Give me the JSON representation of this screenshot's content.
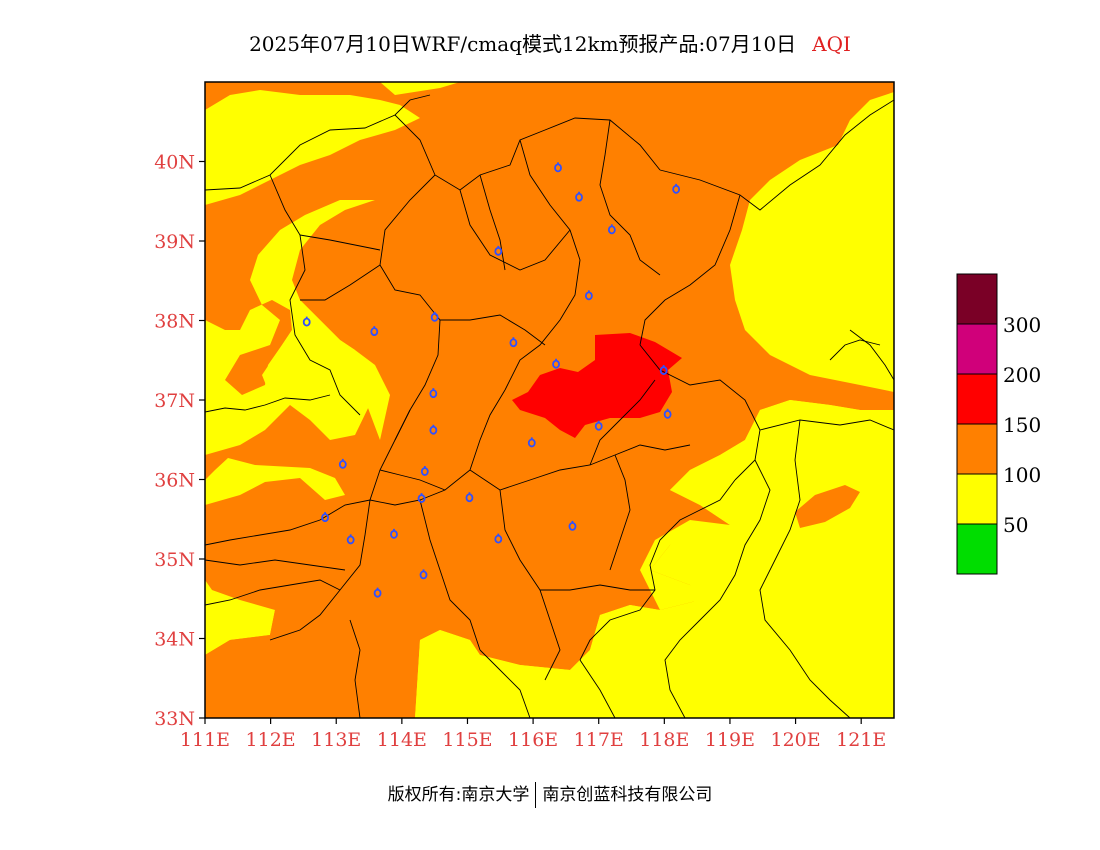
{
  "title": {
    "main": "2025年07月10日WRF/cmaq模式12km预报产品:07月10日",
    "variable": "AQI"
  },
  "map": {
    "lon_range": [
      111,
      121.5
    ],
    "lat_range": [
      33,
      41
    ],
    "lat_ticks": [
      "33N",
      "34N",
      "35N",
      "36N",
      "37N",
      "38N",
      "39N",
      "40N"
    ],
    "lon_ticks": [
      "111E",
      "112E",
      "113E",
      "114E",
      "115E",
      "116E",
      "117E",
      "118E",
      "119E",
      "120E",
      "121E"
    ],
    "tick_color": "#e04040",
    "background_level_color": "#ffff00",
    "regions": [
      {
        "level": "101-150",
        "color": "#ff8000",
        "area": "central band from Shanxi through Hebei, Henan and western Shandong"
      },
      {
        "level": "151-200",
        "color": "#ff0000",
        "area": "southern Hebei / western Shandong border"
      }
    ],
    "station_marker_color": "#3050ff"
  },
  "legend": {
    "labels": [
      "300",
      "200",
      "150",
      "100",
      "50"
    ],
    "colors": [
      "#7a0026",
      "#d0007a",
      "#ff0000",
      "#ff8000",
      "#ffff00",
      "#00dd00"
    ]
  },
  "copyright": {
    "left": "版权所有:南京大学",
    "right": "南京创蓝科技有限公司"
  }
}
